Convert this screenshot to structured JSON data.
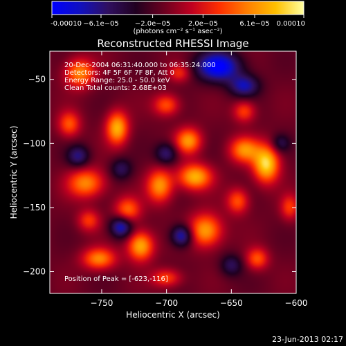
{
  "colorbar": {
    "ticks": [
      "-0.00010",
      "−6.1e−05",
      "−2.0e−05",
      "2.0e−05",
      "6.1e−05",
      "0.00010"
    ],
    "tick_values": [
      -0.0001,
      -6.1e-05,
      -2e-05,
      2e-05,
      6.1e-05,
      0.0001
    ],
    "unit_label": "(photons cm⁻² s⁻¹ asec⁻²)",
    "colormap": [
      "#0000ff",
      "#1010c0",
      "#301060",
      "#200020",
      "#6a0020",
      "#c00020",
      "#ff3000",
      "#ff8000",
      "#ffc000",
      "#ffffa0"
    ]
  },
  "annotations": {
    "line1": "20-Dec-2004 06:31:40.000 to 06:35:24.000",
    "line2": "Detectors: 4F 5F 6F 7F 8F, Att 0",
    "line3": "Energy Range: 25.0 - 50.0 keV",
    "line4": "Clean    Total counts: 2.68E+03",
    "peak": "Position of Peak = [-623,-116]"
  },
  "footer": {
    "date": "23-Jun-2013 02:17"
  },
  "chart_data": {
    "type": "heatmap",
    "title": "Reconstructed RHESSI Image",
    "xlabel": "Heliocentric X (arcsec)",
    "ylabel": "Heliocentric Y (arcsec)",
    "xlim": [
      -790,
      -600
    ],
    "ylim": [
      -217,
      -28
    ],
    "xticks": [
      -750,
      -700,
      -650,
      -600
    ],
    "yticks": [
      -50,
      -100,
      -150,
      -200
    ],
    "xtick_labels": [
      "−750",
      "−700",
      "−650",
      "−600"
    ],
    "ytick_labels": [
      "−50",
      "−100",
      "−150",
      "−200"
    ],
    "sources": [
      {
        "x": -623,
        "y": -116,
        "v": 1.0,
        "sx": 7,
        "sy": 10
      },
      {
        "x": -738,
        "y": -88,
        "v": 0.85,
        "sx": 6,
        "sy": 9
      },
      {
        "x": -678,
        "y": -126,
        "v": 0.85,
        "sx": 9,
        "sy": 7
      },
      {
        "x": -683,
        "y": -98,
        "v": 0.75,
        "sx": 7,
        "sy": 7
      },
      {
        "x": -767,
        "y": -45,
        "v": 0.7,
        "sx": 8,
        "sy": 8
      },
      {
        "x": -762,
        "y": -131,
        "v": 0.7,
        "sx": 10,
        "sy": 8
      },
      {
        "x": -705,
        "y": -133,
        "v": 0.75,
        "sx": 7,
        "sy": 9
      },
      {
        "x": -640,
        "y": -105,
        "v": 0.7,
        "sx": 8,
        "sy": 7
      },
      {
        "x": -730,
        "y": -152,
        "v": 0.6,
        "sx": 7,
        "sy": 7
      },
      {
        "x": -720,
        "y": -180,
        "v": 0.85,
        "sx": 7,
        "sy": 8
      },
      {
        "x": -752,
        "y": -190,
        "v": 0.7,
        "sx": 9,
        "sy": 6
      },
      {
        "x": -670,
        "y": -168,
        "v": 0.8,
        "sx": 9,
        "sy": 9
      },
      {
        "x": -630,
        "y": -190,
        "v": 0.55,
        "sx": 6,
        "sy": 6
      },
      {
        "x": -700,
        "y": -70,
        "v": 0.55,
        "sx": 7,
        "sy": 6
      },
      {
        "x": -640,
        "y": -75,
        "v": 0.5,
        "sx": 6,
        "sy": 6
      },
      {
        "x": -775,
        "y": -85,
        "v": 0.55,
        "sx": 6,
        "sy": 7
      },
      {
        "x": -700,
        "y": -205,
        "v": 0.5,
        "sx": 8,
        "sy": 5
      },
      {
        "x": -645,
        "y": -145,
        "v": 0.55,
        "sx": 6,
        "sy": 7
      },
      {
        "x": -760,
        "y": -160,
        "v": 0.45,
        "sx": 6,
        "sy": 6
      },
      {
        "x": -605,
        "y": -150,
        "v": 0.45,
        "sx": 5,
        "sy": 7
      },
      {
        "x": -690,
        "y": -45,
        "v": 0.4,
        "sx": 6,
        "sy": 5
      },
      {
        "x": -660,
        "y": -40,
        "v": -0.9,
        "sx": 12,
        "sy": 8
      },
      {
        "x": -640,
        "y": -55,
        "v": -0.6,
        "sx": 8,
        "sy": 6
      },
      {
        "x": -735,
        "y": -165,
        "v": -0.7,
        "sx": 6,
        "sy": 6
      },
      {
        "x": -688,
        "y": -172,
        "v": -0.7,
        "sx": 6,
        "sy": 6
      },
      {
        "x": -700,
        "y": -108,
        "v": -0.5,
        "sx": 6,
        "sy": 6
      },
      {
        "x": -768,
        "y": -110,
        "v": -0.5,
        "sx": 6,
        "sy": 6
      },
      {
        "x": -735,
        "y": -120,
        "v": -0.4,
        "sx": 6,
        "sy": 6
      },
      {
        "x": -650,
        "y": -195,
        "v": -0.4,
        "sx": 6,
        "sy": 6
      },
      {
        "x": -612,
        "y": -100,
        "v": -0.35,
        "sx": 5,
        "sy": 5
      }
    ]
  }
}
